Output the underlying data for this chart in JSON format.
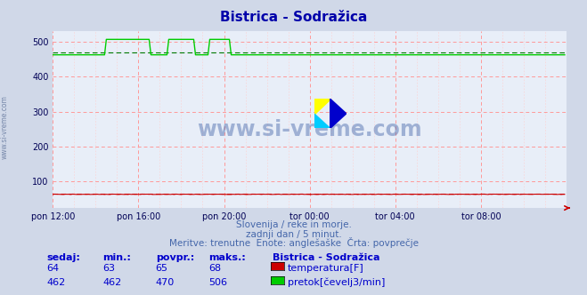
{
  "title": "Bistrica - Sodražica",
  "background_color": "#d0d8e8",
  "plot_bg_color": "#e8eef8",
  "grid_color_major": "#ff9999",
  "grid_color_minor": "#ffcccc",
  "xlabel_times": [
    "pon 12:00",
    "pon 16:00",
    "pon 20:00",
    "tor 00:00",
    "tor 04:00",
    "tor 08:00"
  ],
  "xtick_positions": [
    0,
    48,
    96,
    144,
    192,
    240
  ],
  "ylabel_values": [
    100,
    200,
    300,
    400,
    500
  ],
  "ymin": 25,
  "ymax": 530,
  "xmin": 0,
  "xmax": 288,
  "n_points": 288,
  "temp_base": 64,
  "temp_min": 63,
  "temp_max": 68,
  "temp_avg": 65,
  "flow_spike_start": 30,
  "flow_spike1_end": 55,
  "flow_spike2_start": 65,
  "flow_spike2_end": 80,
  "flow_spike3_start": 88,
  "flow_spike3_end": 100,
  "flow_spike_height": 506,
  "flow_settled": 462,
  "flow_avg": 470,
  "temp_color": "#cc0000",
  "flow_color": "#00cc00",
  "flow_avg_color": "#007700",
  "subtitle1": "Slovenija / reke in morje.",
  "subtitle2": "zadnji dan / 5 minut.",
  "subtitle3": "Meritve: trenutne  Enote: anglešaške  Črta: povprečje",
  "legend_title": "Bistrica - Sodražica",
  "legend_rows": [
    {
      "sedaj": "64",
      "min": "63",
      "povpr": "65",
      "maks": "68",
      "color": "#cc0000",
      "label": "temperatura[F]"
    },
    {
      "sedaj": "462",
      "min": "462",
      "povpr": "470",
      "maks": "506",
      "color": "#00cc00",
      "label": "pretok[čevelj3/min]"
    }
  ],
  "watermark": "www.si-vreme.com",
  "watermark_color": "#4466aa",
  "side_label": "www.si-vreme.com"
}
